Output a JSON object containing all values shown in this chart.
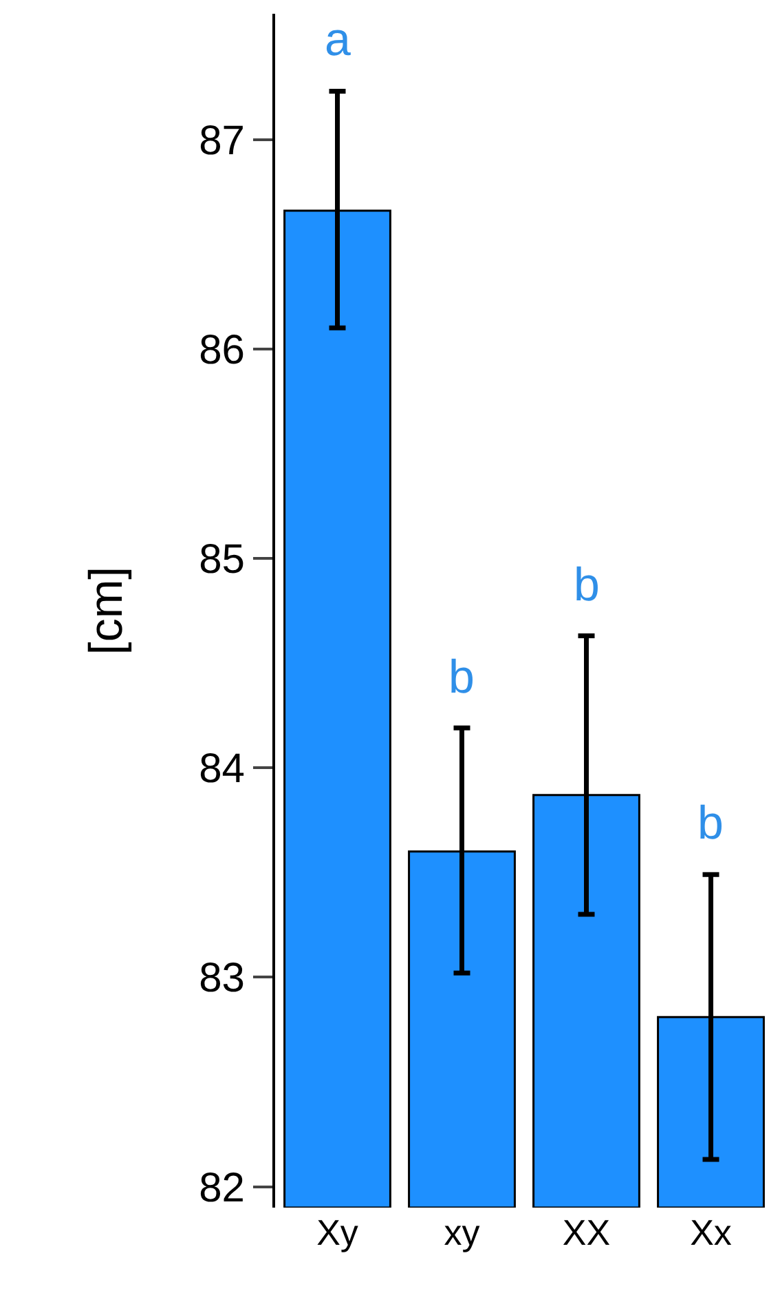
{
  "chart_data": {
    "type": "bar",
    "ylabel": "[cm]",
    "categories": [
      "Xy",
      "xy",
      "XX",
      "Xx"
    ],
    "values": [
      86.66,
      83.6,
      83.87,
      82.81
    ],
    "errors": [
      [
        86.1,
        87.23
      ],
      [
        83.02,
        84.19
      ],
      [
        83.3,
        84.63
      ],
      [
        82.13,
        83.49
      ]
    ],
    "color": "#1e90ff",
    "ylim": [
      81.9,
      87.6
    ],
    "yticks": [
      82,
      83,
      84,
      85,
      86,
      87
    ],
    "annotations": [
      "a",
      "b",
      "b",
      "b"
    ]
  }
}
